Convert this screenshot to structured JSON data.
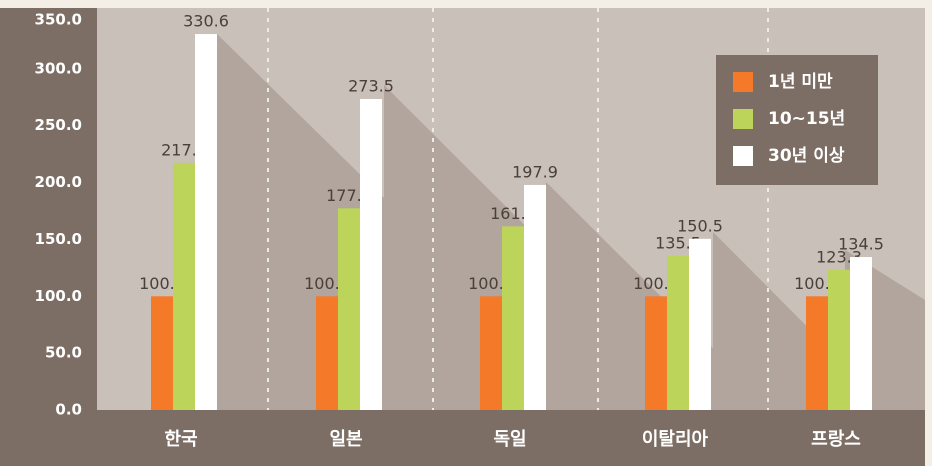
{
  "chart_data": {
    "type": "bar",
    "categories": [
      "한국",
      "일본",
      "독일",
      "이탈리아",
      "프랑스"
    ],
    "series": [
      {
        "name": "1년 미만",
        "color": "#f47a2a",
        "values": [
          100,
          100,
          100,
          100,
          100
        ],
        "value_labels": [
          "100.0",
          "100.0",
          "100.0",
          "100.0",
          "100.0"
        ]
      },
      {
        "name": "10~15년",
        "color": "#bcd45a",
        "values": [
          217.4,
          177.4,
          161.5,
          135.5,
          123.3
        ],
        "value_labels": [
          "217.4",
          "177.4",
          "161.5",
          "135.5",
          "123.3"
        ]
      },
      {
        "name": "30년 이상",
        "color": "#ffffff",
        "values": [
          330.6,
          273.5,
          197.9,
          150.5,
          134.5
        ],
        "value_labels": [
          "330.6",
          "273.5",
          "197.9",
          "150.5",
          "134.5"
        ]
      }
    ],
    "ylim": [
      0,
      350
    ],
    "yticks": [
      {
        "value": 0,
        "label": "0.0"
      },
      {
        "value": 50,
        "label": "50.0"
      },
      {
        "value": 100,
        "label": "100.0"
      },
      {
        "value": 150,
        "label": "150.0"
      },
      {
        "value": 200,
        "label": "200.0"
      },
      {
        "value": 250,
        "label": "250.0"
      },
      {
        "value": 300,
        "label": "300.0"
      },
      {
        "value": 350,
        "label": "350.0"
      }
    ],
    "legend": "top-right"
  }
}
